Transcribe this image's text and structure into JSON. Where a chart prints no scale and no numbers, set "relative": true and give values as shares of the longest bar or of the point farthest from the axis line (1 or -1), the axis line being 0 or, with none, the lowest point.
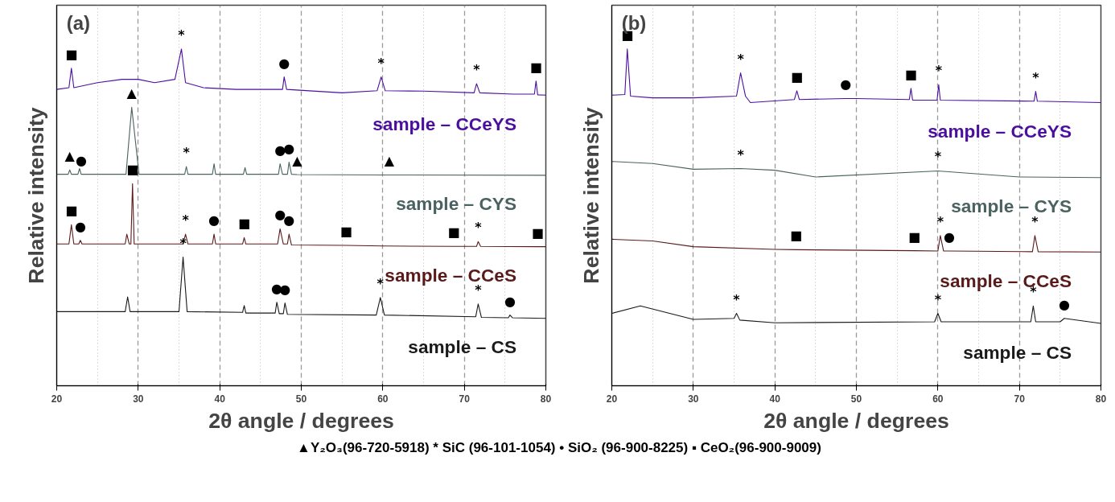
{
  "chart_data": [
    {
      "type": "line",
      "title": "(a)",
      "xlabel": "2θ angle / degrees",
      "ylabel": "Relative intensity",
      "relative": true,
      "xlim": [
        20,
        80
      ],
      "xticks": [
        20,
        {
          "value": 25,
          "label": null
        },
        30,
        {
          "value": 35,
          "label": null
        },
        40,
        {
          "value": 45,
          "label": null
        },
        50,
        {
          "value": 55,
          "label": null
        },
        60,
        {
          "value": 65,
          "label": null
        },
        70,
        {
          "value": 75,
          "label": null
        },
        80
      ],
      "grid": "x",
      "tick_labels": "x",
      "line_style": "solid",
      "series": [
        {
          "name": "sample – CCeYS",
          "color": "#4b0fa0",
          "x": [
            20,
            21.5,
            21.8,
            22.1,
            25,
            28,
            30,
            32,
            34.5,
            35.3,
            35.8,
            38,
            42,
            47.7,
            47.9,
            48.2,
            55,
            59.3,
            59.8,
            60.3,
            65,
            71.2,
            71.5,
            71.9,
            76,
            78.6,
            78.8,
            79,
            80
          ],
          "values": [
            0.88,
            0.885,
            0.943,
            0.885,
            0.9,
            0.91,
            0.91,
            0.9,
            0.91,
            1.0,
            0.9,
            0.885,
            0.88,
            0.88,
            0.917,
            0.88,
            0.87,
            0.876,
            0.917,
            0.876,
            0.875,
            0.87,
            0.897,
            0.87,
            0.866,
            0.866,
            0.905,
            0.864,
            0.863
          ]
        },
        {
          "name": "sample – CYS",
          "color": "#4a6360",
          "x": [
            20,
            21.4,
            21.6,
            21.8,
            22.6,
            22.8,
            23,
            28.5,
            29.2,
            30.1,
            35.7,
            35.9,
            36.1,
            39.1,
            39.3,
            39.5,
            42.9,
            43.1,
            43.3,
            47.2,
            47.4,
            47.7,
            48.3,
            48.5,
            48.8,
            49.5,
            60,
            60.8,
            80
          ],
          "values": [
            0.628,
            0.628,
            0.641,
            0.628,
            0.628,
            0.645,
            0.628,
            0.628,
            0.827,
            0.628,
            0.628,
            0.651,
            0.628,
            0.628,
            0.659,
            0.628,
            0.628,
            0.648,
            0.628,
            0.628,
            0.659,
            0.628,
            0.628,
            0.664,
            0.628,
            0.627,
            0.626,
            0.626,
            0.625
          ]
        },
        {
          "name": "sample – CCeS",
          "color": "#5a1a1a",
          "x": [
            20,
            21.5,
            21.8,
            22.1,
            22.7,
            22.9,
            23.1,
            28.4,
            28.6,
            28.9,
            29.1,
            29.3,
            29.5,
            35.5,
            35.8,
            36.1,
            39.1,
            39.3,
            39.5,
            42.8,
            43,
            43.2,
            47.1,
            47.4,
            47.8,
            48.3,
            48.5,
            48.8,
            55.5,
            60,
            68.7,
            71.5,
            71.7,
            72,
            79,
            80
          ],
          "values": [
            0.421,
            0.421,
            0.478,
            0.421,
            0.421,
            0.432,
            0.421,
            0.421,
            0.45,
            0.421,
            0.421,
            0.6,
            0.421,
            0.421,
            0.45,
            0.421,
            0.421,
            0.45,
            0.421,
            0.421,
            0.44,
            0.421,
            0.421,
            0.466,
            0.421,
            0.421,
            0.45,
            0.418,
            0.417,
            0.415,
            0.414,
            0.414,
            0.428,
            0.414,
            0.413,
            0.413
          ]
        },
        {
          "name": "sample – CS",
          "color": "#1a1a1a",
          "x": [
            20,
            28.4,
            28.7,
            29,
            35,
            35.5,
            36,
            42.8,
            43,
            43.2,
            46.8,
            47,
            47.3,
            47.8,
            48,
            48.3,
            59.2,
            59.7,
            60.2,
            71.4,
            71.7,
            72.1,
            75.4,
            75.6,
            75.9,
            80
          ],
          "values": [
            0.22,
            0.22,
            0.264,
            0.22,
            0.22,
            0.382,
            0.22,
            0.218,
            0.238,
            0.216,
            0.216,
            0.248,
            0.214,
            0.214,
            0.246,
            0.212,
            0.21,
            0.262,
            0.21,
            0.205,
            0.243,
            0.203,
            0.202,
            0.21,
            0.202,
            0.2
          ]
        }
      ],
      "annotations": [
        {
          "text": "■",
          "x": 21.8,
          "y": 0.943
        },
        {
          "text": "*",
          "x": 35.3,
          "y": 1.0
        },
        {
          "text": "●",
          "x": 47.9,
          "y": 0.917
        },
        {
          "text": "*",
          "x": 59.8,
          "y": 0.917
        },
        {
          "text": "*",
          "x": 71.5,
          "y": 0.897
        },
        {
          "text": "■",
          "x": 78.8,
          "y": 0.905
        },
        {
          "text": "▲",
          "x": 29.2,
          "y": 0.827
        },
        {
          "text": "▲",
          "x": 49.5,
          "y": 0.627
        },
        {
          "text": "▲",
          "x": 21.6,
          "y": 0.641
        },
        {
          "text": "●",
          "x": 23,
          "y": 0.628
        },
        {
          "text": "*",
          "x": 35.9,
          "y": 0.651
        },
        {
          "text": "●",
          "x": 47.4,
          "y": 0.659
        },
        {
          "text": "●",
          "x": 48.5,
          "y": 0.664
        },
        {
          "text": "▲",
          "x": 60.8,
          "y": 0.626
        },
        {
          "text": "■",
          "x": 29.3,
          "y": 0.6
        },
        {
          "text": "■",
          "x": 21.8,
          "y": 0.478
        },
        {
          "text": "●",
          "x": 22.9,
          "y": 0.432
        },
        {
          "text": "*",
          "x": 35.8,
          "y": 0.45
        },
        {
          "text": "●",
          "x": 39.3,
          "y": 0.45
        },
        {
          "text": "■",
          "x": 43,
          "y": 0.44
        },
        {
          "text": "●",
          "x": 47.4,
          "y": 0.466
        },
        {
          "text": "●",
          "x": 48.5,
          "y": 0.45
        },
        {
          "text": "■",
          "x": 55.5,
          "y": 0.417
        },
        {
          "text": "■",
          "x": 68.7,
          "y": 0.414
        },
        {
          "text": "*",
          "x": 71.7,
          "y": 0.428
        },
        {
          "text": "■",
          "x": 79,
          "y": 0.413
        },
        {
          "text": "*",
          "x": 35.5,
          "y": 0.382
        },
        {
          "text": "●",
          "x": 47,
          "y": 0.248
        },
        {
          "text": "●",
          "x": 48,
          "y": 0.246
        },
        {
          "text": "*",
          "x": 59.7,
          "y": 0.262
        },
        {
          "text": "*",
          "x": 71.7,
          "y": 0.243
        },
        {
          "text": "●",
          "x": 75.6,
          "y": 0.21
        }
      ]
    },
    {
      "type": "line",
      "title": "(b)",
      "xlabel": "2θ angle / degrees",
      "ylabel": "Relative intensity",
      "relative": true,
      "xlim": [
        20,
        80
      ],
      "xticks": [
        20,
        {
          "value": 25,
          "label": null
        },
        30,
        {
          "value": 35,
          "label": null
        },
        40,
        {
          "value": 45,
          "label": null
        },
        50,
        {
          "value": 55,
          "label": null
        },
        60,
        {
          "value": 65,
          "label": null
        },
        70,
        {
          "value": 75,
          "label": null
        },
        80
      ],
      "grid": "x",
      "tick_labels": "x",
      "line_style": "solid",
      "series": [
        {
          "name": "sample – CCeYS",
          "color": "#4b0fa0",
          "x": [
            20,
            21.6,
            21.9,
            22.3,
            25,
            30,
            35.3,
            35.8,
            36.4,
            37,
            42.4,
            42.7,
            43,
            48.7,
            50,
            56.5,
            56.7,
            56.9,
            59.9,
            60.1,
            60.3,
            71.8,
            72,
            72.2,
            80
          ],
          "values": [
            0.863,
            0.865,
            1.0,
            0.86,
            0.855,
            0.855,
            0.86,
            0.929,
            0.86,
            0.841,
            0.85,
            0.876,
            0.85,
            0.853,
            0.853,
            0.85,
            0.883,
            0.848,
            0.848,
            0.894,
            0.848,
            0.845,
            0.874,
            0.845,
            0.841
          ]
        },
        {
          "name": "sample – CYS",
          "color": "#4a6360",
          "x": [
            20,
            25,
            30,
            35.8,
            40,
            45,
            60,
            70,
            80
          ],
          "values": [
            0.666,
            0.66,
            0.643,
            0.645,
            0.64,
            0.62,
            0.638,
            0.62,
            0.618
          ]
        },
        {
          "name": "sample – CCeS",
          "color": "#5a1a1a",
          "x": [
            20,
            25,
            30,
            40,
            42.6,
            57.1,
            60,
            60.3,
            60.7,
            61.4,
            71.6,
            71.9,
            72.3,
            80
          ],
          "values": [
            0.435,
            0.43,
            0.413,
            0.405,
            0.404,
            0.401,
            0.4,
            0.446,
            0.4,
            0.4,
            0.398,
            0.446,
            0.398,
            0.397
          ]
        },
        {
          "name": "sample – CS",
          "color": "#1a1a1a",
          "x": [
            20,
            23.5,
            30,
            35,
            35.3,
            35.7,
            40,
            59.6,
            60,
            60.4,
            71.4,
            71.7,
            72,
            75,
            75.5,
            80
          ],
          "values": [
            0.215,
            0.237,
            0.197,
            0.2,
            0.215,
            0.195,
            0.187,
            0.19,
            0.215,
            0.19,
            0.19,
            0.237,
            0.19,
            0.19,
            0.2,
            0.185
          ]
        }
      ],
      "annotations": [
        {
          "text": "■",
          "x": 21.9,
          "y": 1.0
        },
        {
          "text": "*",
          "x": 35.8,
          "y": 0.929
        },
        {
          "text": "■",
          "x": 42.7,
          "y": 0.876
        },
        {
          "text": "●",
          "x": 48.7,
          "y": 0.853
        },
        {
          "text": "■",
          "x": 56.7,
          "y": 0.883
        },
        {
          "text": "*",
          "x": 60.1,
          "y": 0.894
        },
        {
          "text": "*",
          "x": 72,
          "y": 0.874
        },
        {
          "text": "*",
          "x": 35.8,
          "y": 0.645
        },
        {
          "text": "*",
          "x": 60,
          "y": 0.638
        },
        {
          "text": "■",
          "x": 42.6,
          "y": 0.404
        },
        {
          "text": "■",
          "x": 57.1,
          "y": 0.401
        },
        {
          "text": "*",
          "x": 60.3,
          "y": 0.446
        },
        {
          "text": "●",
          "x": 61.4,
          "y": 0.4
        },
        {
          "text": "*",
          "x": 71.9,
          "y": 0.446
        },
        {
          "text": "*",
          "x": 35.3,
          "y": 0.215
        },
        {
          "text": "*",
          "x": 60,
          "y": 0.215
        },
        {
          "text": "*",
          "x": 71.7,
          "y": 0.237
        },
        {
          "text": "●",
          "x": 75.5,
          "y": 0.2
        },
        "▲Y₂O₃(96-720-5918) *  SiC (96-101-1054) • SiO₂ (96-900-8225) ▪ CeO₂(96-900-9009)"
      ]
    }
  ]
}
